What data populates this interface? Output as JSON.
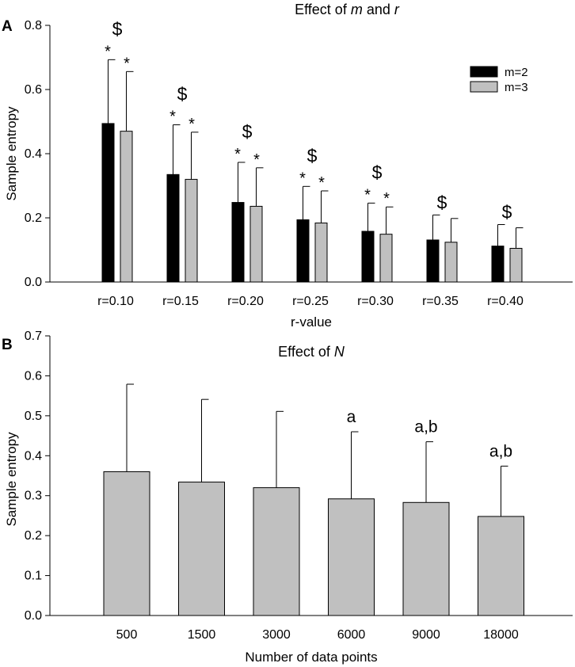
{
  "chart_data": [
    {
      "panel": "A",
      "type": "bar",
      "title_prefix": "Effect of ",
      "title_var1": "m",
      "title_mid": " and ",
      "title_var2": "r",
      "xlabel": "r-value",
      "ylabel": "Sample entropy",
      "ylim": [
        0,
        0.8
      ],
      "yticks": [
        "0.0",
        "0.2",
        "0.4",
        "0.6",
        "0.8"
      ],
      "categories": [
        "r=0.10",
        "r=0.15",
        "r=0.20",
        "r=0.25",
        "r=0.30",
        "r=0.35",
        "r=0.40"
      ],
      "series": [
        {
          "name": "m=2",
          "color": "#000000",
          "values": [
            0.494,
            0.335,
            0.248,
            0.194,
            0.158,
            0.131,
            0.112
          ],
          "errors": [
            0.199,
            0.155,
            0.125,
            0.104,
            0.088,
            0.078,
            0.067
          ]
        },
        {
          "name": "m=3",
          "color": "#c0c0c0",
          "values": [
            0.47,
            0.32,
            0.236,
            0.184,
            0.149,
            0.124,
            0.105
          ],
          "errors": [
            0.186,
            0.147,
            0.12,
            0.1,
            0.085,
            0.074,
            0.064
          ]
        }
      ],
      "star_label": "*",
      "dollar_label": "$",
      "annotations": {
        "stars": [
          true,
          true,
          true,
          true,
          true,
          false,
          false
        ],
        "dollar": [
          true,
          true,
          true,
          true,
          true,
          true,
          true
        ]
      },
      "legend_position": "top-right"
    },
    {
      "panel": "B",
      "type": "bar",
      "title_prefix": "Effect of ",
      "title_var1": "N",
      "xlabel": "Number of data points",
      "ylabel": "Sample entropy",
      "ylim": [
        0,
        0.7
      ],
      "yticks": [
        "0.0",
        "0.1",
        "0.2",
        "0.3",
        "0.4",
        "0.5",
        "0.6",
        "0.7"
      ],
      "categories": [
        "500",
        "1500",
        "3000",
        "6000",
        "9000",
        "18000"
      ],
      "series": [
        {
          "name": "Sample entropy",
          "color": "#c0c0c0",
          "values": [
            0.36,
            0.334,
            0.32,
            0.292,
            0.283,
            0.248
          ],
          "errors": [
            0.219,
            0.207,
            0.191,
            0.168,
            0.152,
            0.126
          ]
        }
      ],
      "annotations": [
        "",
        "",
        "",
        "a",
        "a,b",
        "a,b"
      ]
    }
  ]
}
